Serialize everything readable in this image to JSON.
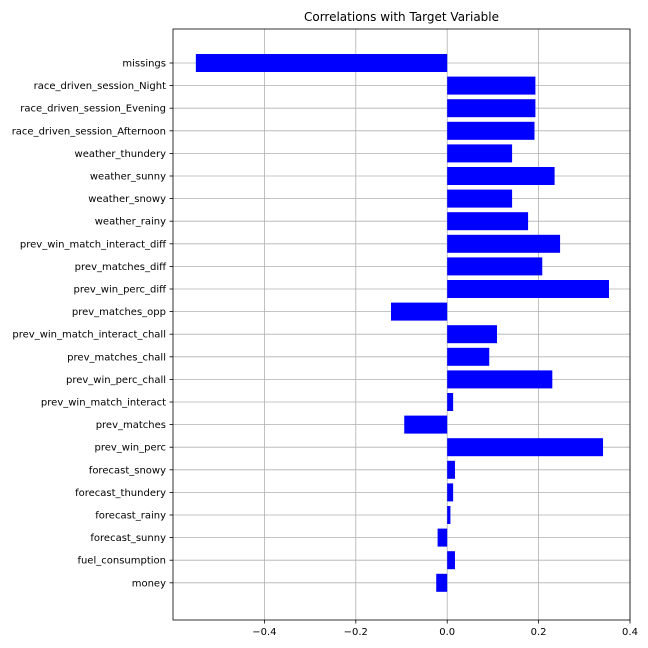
{
  "chart_data": {
    "type": "bar",
    "orientation": "horizontal",
    "title": "Correlations with Target Variable",
    "xlabel": "",
    "ylabel": "",
    "xlim": [
      -0.6,
      0.4
    ],
    "xticks": [
      -0.4,
      -0.2,
      0.0,
      0.2,
      0.4
    ],
    "xtick_labels": [
      "−0.4",
      "−0.2",
      "0.0",
      "0.2",
      "0.4"
    ],
    "grid": true,
    "bar_color": "#0000ff",
    "categories": [
      "missings",
      "race_driven_session_Night",
      "race_driven_session_Evening",
      "race_driven_session_Afternoon",
      "weather_thundery",
      "weather_sunny",
      "weather_snowy",
      "weather_rainy",
      "prev_win_match_interact_diff",
      "prev_matches_diff",
      "prev_win_perc_diff",
      "prev_matches_opp",
      "prev_win_match_interact_chall",
      "prev_matches_chall",
      "prev_win_perc_chall",
      "prev_win_match_interact",
      "prev_matches",
      "prev_win_perc",
      "forecast_snowy",
      "forecast_thundery",
      "forecast_rainy",
      "forecast_sunny",
      "fuel_consumption",
      "money"
    ],
    "values": [
      -0.55,
      0.193,
      0.193,
      0.191,
      0.142,
      0.235,
      0.142,
      0.177,
      0.247,
      0.208,
      0.354,
      -0.123,
      0.109,
      0.092,
      0.23,
      0.013,
      -0.094,
      0.341,
      0.017,
      0.013,
      0.007,
      -0.021,
      0.017,
      -0.024
    ]
  }
}
